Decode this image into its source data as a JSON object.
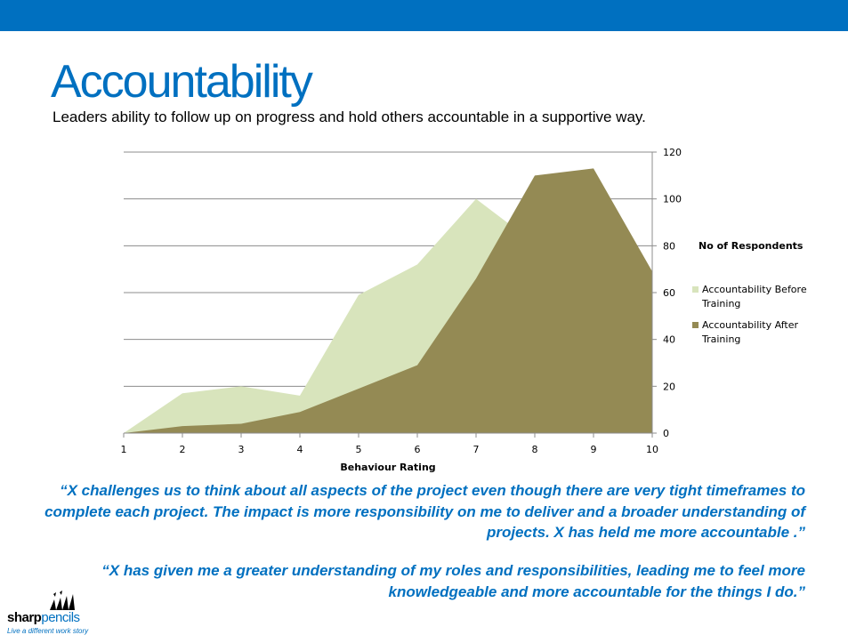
{
  "slide": {
    "title": "Accountability",
    "subtitle": "Leaders ability to follow up on progress and hold others accountable in a supportive way."
  },
  "chart_data": {
    "type": "area",
    "x": [
      1,
      2,
      3,
      4,
      5,
      6,
      7,
      8,
      9,
      10
    ],
    "xlabel": "Behaviour Rating",
    "ylabel": "",
    "ylim": [
      0,
      120
    ],
    "yticks": [
      0,
      20,
      40,
      60,
      80,
      100,
      120
    ],
    "y_axis_side": "right",
    "grid": true,
    "legend_title": "No of Respondents",
    "legend_position": "right",
    "series": [
      {
        "name": "Accountability Before Training",
        "color": "#d8e4bc",
        "values": [
          0,
          17,
          20,
          16,
          59,
          72,
          100,
          81,
          59,
          37
        ]
      },
      {
        "name": "Accountability After Training",
        "color": "#948a54",
        "values": [
          0,
          3,
          4,
          9,
          19,
          29,
          66,
          110,
          113,
          69
        ]
      }
    ]
  },
  "quotes": [
    "“X challenges us to think about all aspects of the project even though there are very tight timeframes to complete each project. The impact is more responsibility on me to deliver and a broader understanding of projects.  X has held me more accountable .”",
    "“X has given me a greater understanding of my roles and responsibilities, leading me to feel more knowledgeable and more accountable for the things I do.”"
  ],
  "logo": {
    "name_bold": "sharp",
    "name_light": "pencils",
    "tagline": "Live a different work story"
  }
}
